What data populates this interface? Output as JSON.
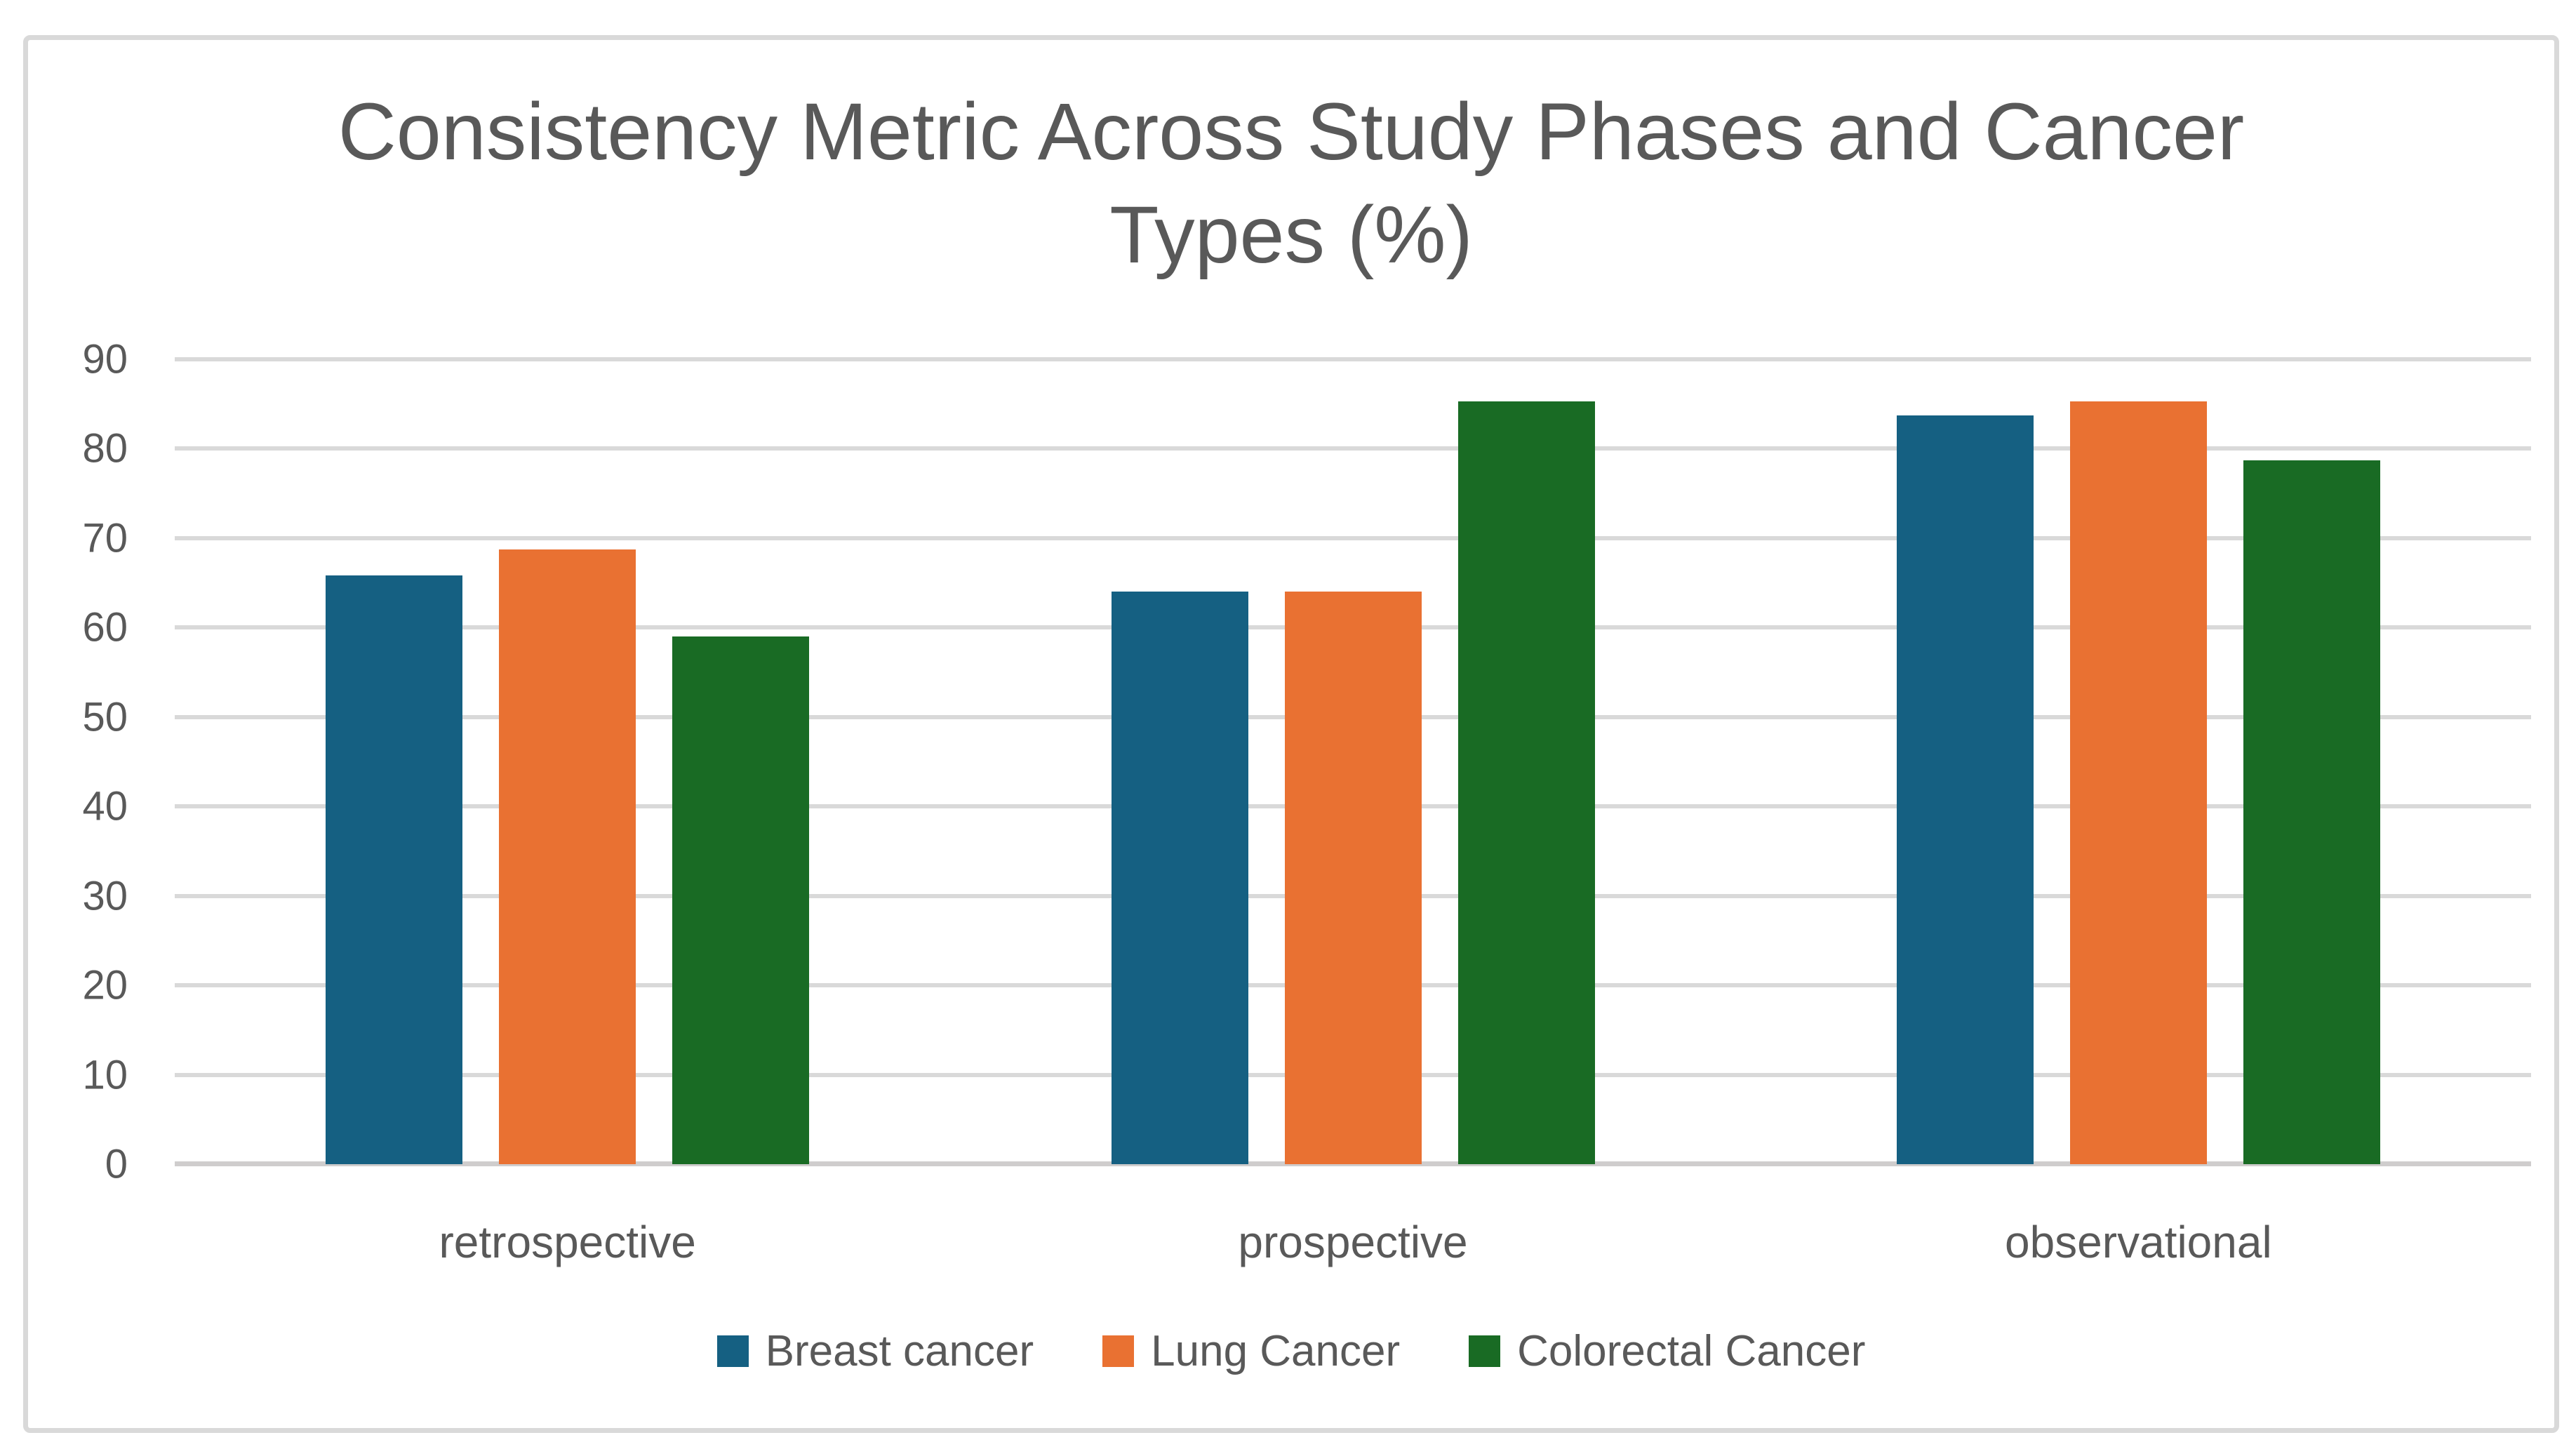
{
  "chart_data": {
    "type": "bar",
    "title": "Consistency Metric Across Study Phases and Cancer Types (%)",
    "categories": [
      "retrospective",
      "prospective",
      "observational"
    ],
    "series": [
      {
        "name": "Breast cancer",
        "color": "#156082",
        "values": [
          65.8,
          64.0,
          83.7
        ]
      },
      {
        "name": "Lung Cancer",
        "color": "#E97132",
        "values": [
          68.7,
          64.0,
          85.3
        ]
      },
      {
        "name": "Colorectal Cancer",
        "color": "#196B24",
        "values": [
          59.0,
          85.3,
          78.7
        ]
      }
    ],
    "xlabel": "",
    "ylabel": "",
    "ylim": [
      0,
      90
    ],
    "yticks": [
      0,
      10,
      20,
      30,
      40,
      50,
      60,
      70,
      80,
      90
    ],
    "grid": true,
    "legend_position": "bottom"
  },
  "styles": {
    "text_color": "#595959",
    "grid_color": "#D9D9D9",
    "axis_color": "#CFCDCD",
    "box_border_color": "#D9D9D9",
    "background": "#FFFFFF"
  }
}
